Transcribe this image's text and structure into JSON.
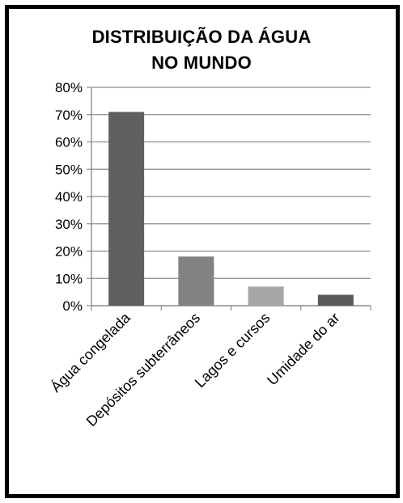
{
  "chart_data": {
    "type": "bar",
    "title": [
      "DISTRIBUIÇÃO DA ÁGUA",
      "NO MUNDO"
    ],
    "categories": [
      "Água congelada",
      "Depósitos subterrâneos",
      "Lagos e cursos",
      "Umidade do ar"
    ],
    "values": [
      0.71,
      0.18,
      0.07,
      0.04
    ],
    "colors": [
      "#5f5f5f",
      "#828282",
      "#a6a6a6",
      "#5a5a5a"
    ],
    "yticks": [
      "0%",
      "10%",
      "20%",
      "30%",
      "40%",
      "50%",
      "60%",
      "70%",
      "80%"
    ],
    "ylim": [
      0,
      0.8
    ],
    "grid": true,
    "legend": "none"
  }
}
